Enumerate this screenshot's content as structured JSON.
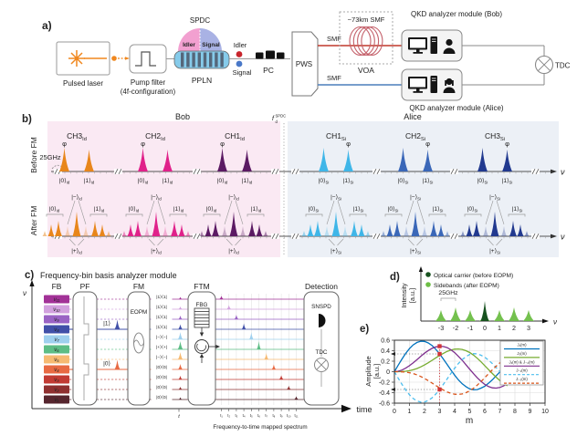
{
  "panel_a": {
    "label": "a)",
    "pulsed_laser": "Pulsed laser",
    "pump_filter_line1": "Pump filter",
    "pump_filter_line2": "(4f-configuration)",
    "spdc": "SPDC",
    "idler_dome": "Idler",
    "signal_dome": "Signal",
    "ppln": "PPLN",
    "idler": "Idler",
    "signal": "Signal",
    "pc": "PC",
    "pws": "PWS",
    "smf_top": "SMF",
    "smf_bottom": "SMF",
    "fiber_spool": "~73km SMF",
    "voa": "VOA",
    "bob_module": "QKD analyzer module (Bob)",
    "alice_module": "QKD analyzer module (Alice)",
    "tdc": "TDC"
  },
  "panel_b": {
    "label": "b)",
    "bob_header": "Bob",
    "alice_header": "Alice",
    "before_fm": "Before FM",
    "after_fm": "After FM",
    "spacing": "25GHz",
    "axis": "ν",
    "center": {
      "base": "f",
      "sub": "d",
      "sup": "SPDC"
    },
    "phase_symbol": "φ",
    "kets": {
      "zero": "|0⟩",
      "one": "|1⟩",
      "minus": "|−⟩",
      "plus": "|+⟩"
    },
    "bob_sub": "Id",
    "alice_sub": "Si",
    "bob_channels": [
      {
        "name": "CH3",
        "color": "#E8861B"
      },
      {
        "name": "CH2",
        "color": "#E0218A"
      },
      {
        "name": "CH1",
        "color": "#5B1A63"
      }
    ],
    "alice_channels": [
      {
        "name": "CH1",
        "color": "#3FB6E8"
      },
      {
        "name": "CH2",
        "color": "#3A67B8"
      },
      {
        "name": "CH3",
        "color": "#21398F"
      }
    ],
    "colors": {
      "bob_bg": "#FAE9F3",
      "alice_bg": "#ECF0F6"
    }
  },
  "panel_c": {
    "label": "c)",
    "title": "Frequency-bin basis analyzer module",
    "headers": [
      "FB",
      "PF",
      "FM",
      "FTM",
      "Detection"
    ],
    "axis_freq": "ν",
    "axis_time": "time",
    "eopm": "EOPM",
    "fbg": "FBG",
    "snspd": "SNSPD",
    "tdc": "TDC",
    "ket_one": "|1⟩",
    "ket_zero": "|0⟩",
    "pre_tick": "t",
    "caption": "Frequency-to-time mapped spectrum",
    "bins": [
      {
        "label": "ν₁₁",
        "color": "#A23297"
      },
      {
        "label": "ν₁₀",
        "color": "#D2A1DE"
      },
      {
        "label": "ν₉",
        "color": "#9A63C4"
      },
      {
        "label": "ν₈",
        "color": "#4150A8",
        "selected": true
      },
      {
        "label": "ν₇",
        "color": "#9FD0EE"
      },
      {
        "label": "ν₆",
        "color": "#5DBD85"
      },
      {
        "label": "ν₅",
        "color": "#F6BA72"
      },
      {
        "label": "ν₄",
        "color": "#E86A43",
        "selected": true
      },
      {
        "label": "ν₃",
        "color": "#C23B34"
      },
      {
        "label": "ν₂",
        "color": "#8F3030"
      },
      {
        "label": "ν₁",
        "color": "#56262E"
      }
    ],
    "projectors": [
      "|1⟩⟨1|",
      "|1⟩⟨1|",
      "|1⟩⟨1|",
      "|1⟩⟨1|",
      "|−⟩⟨−|",
      "|+⟩⟨+|",
      "|−⟩⟨−|",
      "|0⟩⟨0|",
      "|0⟩⟨0|",
      "|0⟩⟨0|",
      "|0⟩⟨0|"
    ],
    "time_ticks": [
      "t₁",
      "t₂",
      "t₃",
      "t₄",
      "t₅",
      "t₆",
      "t₇",
      "t₈",
      "t₉",
      "t₁₀",
      "t₁₁"
    ]
  },
  "chart_data": [
    {
      "id": "sideband-spectrum",
      "panel_label": "d)",
      "type": "bar",
      "legend": [
        "Optical carrier (before EOPM)",
        "Sidebands (after EOPM)"
      ],
      "categories": [
        -3,
        -2,
        -1,
        0,
        1,
        2,
        3
      ],
      "values": [
        0.55,
        0.68,
        0.55,
        1.0,
        0.55,
        0.68,
        0.55
      ],
      "carrier_index": 3,
      "ylabel": "Intensity [a.u.]",
      "xlabel": "ν",
      "annotation": "25GHz",
      "colors": {
        "carrier": "#17521F",
        "sideband": "#6DBE45"
      }
    },
    {
      "id": "bessel-amplitudes",
      "panel_label": "e)",
      "type": "line",
      "xlabel": "m",
      "ylabel": "Amplitude [a.u.]",
      "xlim": [
        0,
        10
      ],
      "ylim": [
        -0.6,
        0.6
      ],
      "xticks": [
        0,
        1,
        2,
        3,
        4,
        5,
        6,
        7,
        8,
        9,
        10
      ],
      "yticks": [
        0.6,
        0.4,
        0.2,
        0,
        -0.2,
        -0.4,
        -0.6
      ],
      "grid": true,
      "legend_position": "upper right",
      "x": [
        0,
        0.25,
        0.5,
        0.75,
        1,
        1.25,
        1.5,
        1.75,
        2,
        2.25,
        2.5,
        2.75,
        3,
        3.25,
        3.5,
        3.75,
        4,
        4.25,
        4.5,
        4.75,
        5,
        5.25,
        5.5,
        5.75,
        6,
        6.25,
        6.5,
        6.75,
        7,
        7.25,
        7.5
      ],
      "series": [
        {
          "name": "J₁(m)",
          "color": "#0072BD",
          "style": "solid",
          "values": [
            0,
            0.124,
            0.242,
            0.349,
            0.44,
            0.511,
            0.558,
            0.58,
            0.577,
            0.548,
            0.497,
            0.426,
            0.339,
            0.241,
            0.137,
            0.033,
            -0.066,
            -0.156,
            -0.231,
            -0.285,
            -0.328,
            -0.344,
            -0.341,
            -0.313,
            -0.277,
            -0.219,
            -0.154,
            -0.08,
            -0.005,
            0.067,
            0.135
          ]
        },
        {
          "name": "J₃(m)",
          "color": "#77AC30",
          "style": "solid",
          "values": [
            0,
            0,
            0.003,
            0.009,
            0.02,
            0.037,
            0.061,
            0.092,
            0.129,
            0.171,
            0.217,
            0.264,
            0.309,
            0.35,
            0.387,
            0.413,
            0.43,
            0.433,
            0.425,
            0.4,
            0.365,
            0.316,
            0.256,
            0.187,
            0.115,
            0.04,
            -0.035,
            -0.104,
            -0.168,
            -0.222,
            -0.268
          ]
        },
        {
          "name": "J₂(m) & J₋₂(m)",
          "color": "#7E2F8E",
          "style": "solid",
          "values": [
            0,
            0.008,
            0.031,
            0.067,
            0.115,
            0.171,
            0.232,
            0.294,
            0.353,
            0.403,
            0.446,
            0.473,
            0.486,
            0.48,
            0.459,
            0.417,
            0.364,
            0.293,
            0.218,
            0.133,
            0.047,
            -0.036,
            -0.117,
            -0.184,
            -0.243,
            -0.283,
            -0.307,
            -0.313,
            -0.301,
            -0.272,
            -0.23
          ]
        },
        {
          "name": "J₋₁(m)",
          "color": "#4DBEEE",
          "style": "dashed",
          "values": [
            0,
            -0.124,
            -0.242,
            -0.349,
            -0.44,
            -0.511,
            -0.558,
            -0.58,
            -0.577,
            -0.548,
            -0.497,
            -0.426,
            -0.339,
            -0.241,
            -0.137,
            -0.033,
            0.066,
            0.156,
            0.231,
            0.285,
            0.328,
            0.344,
            0.341,
            0.313,
            0.277,
            0.219,
            0.154,
            0.08,
            0.005,
            -0.067,
            -0.135
          ]
        },
        {
          "name": "J₋₃(m)",
          "color": "#D95319",
          "style": "dashed",
          "values": [
            0,
            0,
            -0.003,
            -0.009,
            -0.02,
            -0.037,
            -0.061,
            -0.092,
            -0.129,
            -0.171,
            -0.217,
            -0.264,
            -0.309,
            -0.35,
            -0.387,
            -0.413,
            -0.43,
            -0.433,
            -0.425,
            -0.4,
            -0.365,
            -0.316,
            -0.256,
            -0.187,
            -0.115,
            -0.04,
            0.035,
            0.104,
            0.168,
            0.222,
            0.268
          ]
        }
      ],
      "markers": [
        {
          "x": 3,
          "y": 0.486
        },
        {
          "x": 3,
          "y": 0.339
        },
        {
          "x": 3,
          "y": -0.339
        }
      ],
      "marker_color": "#D13438",
      "vline_x": 3,
      "hlines": [
        0.339,
        -0.339
      ]
    }
  ]
}
